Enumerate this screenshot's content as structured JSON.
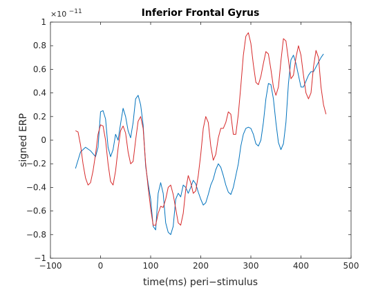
{
  "chart_data": {
    "type": "line",
    "title": "Inferior Frontal Gyrus",
    "xlabel": "time(ms) peri−stimulus",
    "ylabel": "signed ERP",
    "xlim": [
      -100,
      500
    ],
    "ylim": [
      -1,
      1
    ],
    "y_exponent_label": "×10",
    "y_exponent_power": "−11",
    "x_ticks": [
      -100,
      0,
      100,
      200,
      300,
      400,
      500
    ],
    "x_tick_labels": [
      "−100",
      "0",
      "100",
      "200",
      "300",
      "400",
      "500"
    ],
    "y_ticks": [
      -1,
      -0.8,
      -0.6,
      -0.4,
      -0.2,
      0,
      0.2,
      0.4,
      0.6,
      0.8,
      1
    ],
    "y_tick_labels": [
      "−1",
      "−0.8",
      "−0.6",
      "−0.4",
      "−0.2",
      "0",
      "0.2",
      "0.4",
      "0.6",
      "0.8",
      "1"
    ],
    "grid": false,
    "series": [
      {
        "color": "#0072BD",
        "points": [
          [
            -50,
            -0.24
          ],
          [
            -40,
            -0.1
          ],
          [
            -30,
            -0.06
          ],
          [
            -20,
            -0.09
          ],
          [
            -10,
            -0.14
          ],
          [
            -5,
            -0.06
          ],
          [
            0,
            0.24
          ],
          [
            5,
            0.25
          ],
          [
            10,
            0.18
          ],
          [
            15,
            -0.06
          ],
          [
            20,
            -0.14
          ],
          [
            25,
            -0.08
          ],
          [
            30,
            0.05
          ],
          [
            35,
            0.0
          ],
          [
            40,
            0.14
          ],
          [
            45,
            0.27
          ],
          [
            50,
            0.2
          ],
          [
            55,
            0.08
          ],
          [
            60,
            0.02
          ],
          [
            65,
            0.15
          ],
          [
            70,
            0.35
          ],
          [
            75,
            0.38
          ],
          [
            80,
            0.3
          ],
          [
            85,
            0.13
          ],
          [
            90,
            -0.22
          ],
          [
            95,
            -0.37
          ],
          [
            100,
            -0.5
          ],
          [
            105,
            -0.73
          ],
          [
            110,
            -0.76
          ],
          [
            115,
            -0.45
          ],
          [
            120,
            -0.36
          ],
          [
            125,
            -0.45
          ],
          [
            130,
            -0.7
          ],
          [
            135,
            -0.78
          ],
          [
            140,
            -0.8
          ],
          [
            145,
            -0.73
          ],
          [
            150,
            -0.5
          ],
          [
            155,
            -0.45
          ],
          [
            160,
            -0.48
          ],
          [
            165,
            -0.38
          ],
          [
            170,
            -0.4
          ],
          [
            175,
            -0.45
          ],
          [
            180,
            -0.4
          ],
          [
            185,
            -0.34
          ],
          [
            190,
            -0.37
          ],
          [
            195,
            -0.44
          ],
          [
            200,
            -0.5
          ],
          [
            205,
            -0.55
          ],
          [
            210,
            -0.53
          ],
          [
            215,
            -0.46
          ],
          [
            220,
            -0.38
          ],
          [
            225,
            -0.33
          ],
          [
            230,
            -0.25
          ],
          [
            235,
            -0.2
          ],
          [
            240,
            -0.23
          ],
          [
            245,
            -0.3
          ],
          [
            250,
            -0.38
          ],
          [
            255,
            -0.44
          ],
          [
            260,
            -0.46
          ],
          [
            265,
            -0.4
          ],
          [
            270,
            -0.3
          ],
          [
            275,
            -0.2
          ],
          [
            280,
            -0.05
          ],
          [
            285,
            0.05
          ],
          [
            290,
            0.1
          ],
          [
            295,
            0.11
          ],
          [
            300,
            0.1
          ],
          [
            305,
            0.05
          ],
          [
            310,
            -0.03
          ],
          [
            315,
            -0.05
          ],
          [
            320,
            0.0
          ],
          [
            325,
            0.15
          ],
          [
            330,
            0.35
          ],
          [
            335,
            0.48
          ],
          [
            340,
            0.47
          ],
          [
            345,
            0.35
          ],
          [
            350,
            0.15
          ],
          [
            355,
            -0.02
          ],
          [
            360,
            -0.08
          ],
          [
            365,
            -0.03
          ],
          [
            370,
            0.15
          ],
          [
            375,
            0.48
          ],
          [
            380,
            0.68
          ],
          [
            385,
            0.72
          ],
          [
            390,
            0.65
          ],
          [
            395,
            0.55
          ],
          [
            400,
            0.45
          ],
          [
            405,
            0.45
          ],
          [
            410,
            0.5
          ],
          [
            415,
            0.55
          ],
          [
            420,
            0.58
          ],
          [
            425,
            0.58
          ],
          [
            430,
            0.62
          ],
          [
            435,
            0.66
          ],
          [
            440,
            0.7
          ],
          [
            445,
            0.73
          ]
        ]
      },
      {
        "color": "#D62728",
        "points": [
          [
            -50,
            0.08
          ],
          [
            -45,
            0.07
          ],
          [
            -40,
            -0.04
          ],
          [
            -35,
            -0.2
          ],
          [
            -30,
            -0.32
          ],
          [
            -25,
            -0.38
          ],
          [
            -20,
            -0.36
          ],
          [
            -15,
            -0.26
          ],
          [
            -10,
            -0.12
          ],
          [
            -5,
            0.05
          ],
          [
            0,
            0.13
          ],
          [
            5,
            0.12
          ],
          [
            10,
            0.0
          ],
          [
            15,
            -0.2
          ],
          [
            20,
            -0.35
          ],
          [
            25,
            -0.38
          ],
          [
            30,
            -0.26
          ],
          [
            35,
            -0.07
          ],
          [
            40,
            0.08
          ],
          [
            45,
            0.12
          ],
          [
            50,
            0.06
          ],
          [
            55,
            -0.1
          ],
          [
            60,
            -0.2
          ],
          [
            65,
            -0.18
          ],
          [
            70,
            0.0
          ],
          [
            75,
            0.16
          ],
          [
            80,
            0.2
          ],
          [
            85,
            0.1
          ],
          [
            90,
            -0.2
          ],
          [
            95,
            -0.4
          ],
          [
            100,
            -0.58
          ],
          [
            105,
            -0.72
          ],
          [
            110,
            -0.72
          ],
          [
            115,
            -0.62
          ],
          [
            120,
            -0.56
          ],
          [
            125,
            -0.57
          ],
          [
            130,
            -0.5
          ],
          [
            135,
            -0.4
          ],
          [
            140,
            -0.38
          ],
          [
            145,
            -0.46
          ],
          [
            150,
            -0.58
          ],
          [
            155,
            -0.7
          ],
          [
            160,
            -0.72
          ],
          [
            165,
            -0.62
          ],
          [
            170,
            -0.42
          ],
          [
            175,
            -0.3
          ],
          [
            180,
            -0.36
          ],
          [
            185,
            -0.45
          ],
          [
            190,
            -0.43
          ],
          [
            195,
            -0.3
          ],
          [
            200,
            -0.12
          ],
          [
            205,
            0.1
          ],
          [
            210,
            0.2
          ],
          [
            215,
            0.15
          ],
          [
            220,
            -0.05
          ],
          [
            225,
            -0.17
          ],
          [
            230,
            -0.12
          ],
          [
            235,
            0.02
          ],
          [
            240,
            0.1
          ],
          [
            245,
            0.1
          ],
          [
            250,
            0.15
          ],
          [
            255,
            0.24
          ],
          [
            260,
            0.22
          ],
          [
            265,
            0.05
          ],
          [
            270,
            0.05
          ],
          [
            275,
            0.22
          ],
          [
            280,
            0.46
          ],
          [
            285,
            0.72
          ],
          [
            290,
            0.88
          ],
          [
            295,
            0.91
          ],
          [
            300,
            0.82
          ],
          [
            305,
            0.64
          ],
          [
            310,
            0.49
          ],
          [
            315,
            0.47
          ],
          [
            320,
            0.54
          ],
          [
            325,
            0.65
          ],
          [
            330,
            0.75
          ],
          [
            335,
            0.73
          ],
          [
            340,
            0.6
          ],
          [
            345,
            0.45
          ],
          [
            350,
            0.38
          ],
          [
            355,
            0.45
          ],
          [
            360,
            0.67
          ],
          [
            365,
            0.86
          ],
          [
            370,
            0.84
          ],
          [
            375,
            0.68
          ],
          [
            380,
            0.52
          ],
          [
            385,
            0.55
          ],
          [
            390,
            0.7
          ],
          [
            395,
            0.8
          ],
          [
            400,
            0.72
          ],
          [
            405,
            0.55
          ],
          [
            410,
            0.4
          ],
          [
            415,
            0.35
          ],
          [
            420,
            0.4
          ],
          [
            425,
            0.62
          ],
          [
            430,
            0.76
          ],
          [
            435,
            0.7
          ],
          [
            440,
            0.45
          ],
          [
            445,
            0.3
          ],
          [
            450,
            0.22
          ]
        ]
      }
    ]
  }
}
